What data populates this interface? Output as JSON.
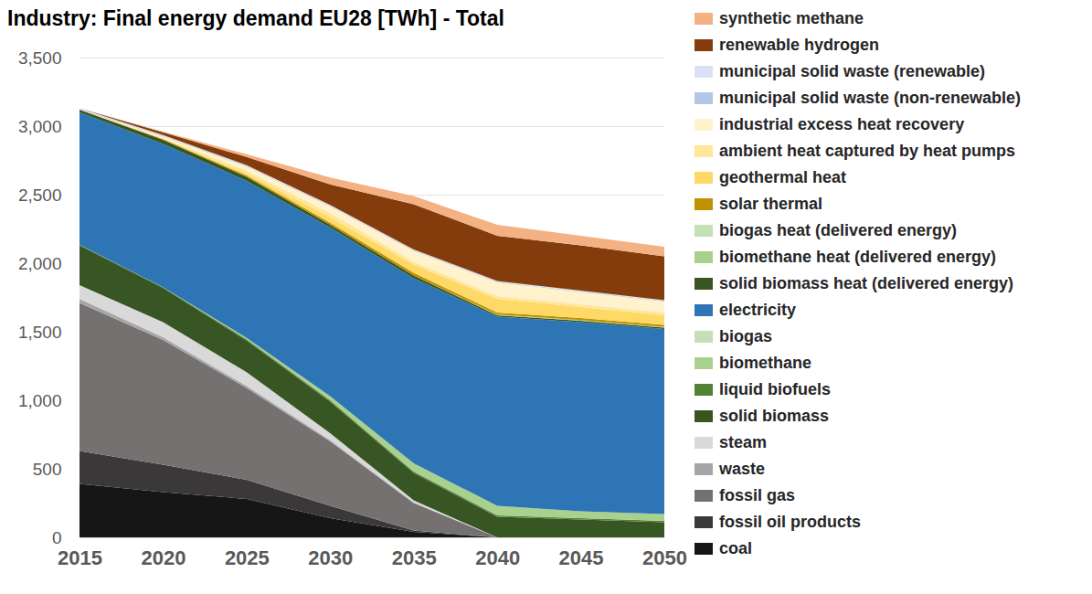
{
  "chart_data": {
    "type": "area",
    "title": "Industry: Final energy demand EU28 [TWh] - Total",
    "stacked": true,
    "grid": true,
    "legend": "right",
    "x": [
      2015,
      2020,
      2025,
      2030,
      2035,
      2040,
      2045,
      2050
    ],
    "xlim": [
      2015,
      2050
    ],
    "xticks": [
      2015,
      2020,
      2025,
      2030,
      2035,
      2040,
      2045,
      2050
    ],
    "ylim": [
      0,
      3500
    ],
    "yticks": [
      0,
      500,
      {
        "value": 1000,
        "label": "1,000"
      },
      {
        "value": 1500,
        "label": "1,500"
      },
      {
        "value": 2000,
        "label": "2,000"
      },
      {
        "value": 2500,
        "label": "2,500"
      },
      {
        "value": 3000,
        "label": "3,000"
      },
      {
        "value": 3500,
        "label": "3,500"
      }
    ],
    "series": [
      {
        "name": "coal",
        "color": "#161616",
        "values": [
          390,
          330,
          280,
          140,
          40,
          0,
          0,
          0
        ]
      },
      {
        "name": "fossil oil products",
        "color": "#3a3838",
        "values": [
          240,
          200,
          140,
          90,
          10,
          0,
          0,
          0
        ]
      },
      {
        "name": "fossil gas",
        "color": "#767171",
        "values": [
          1080,
          910,
          670,
          470,
          200,
          0,
          0,
          0
        ]
      },
      {
        "name": "waste",
        "color": "#a6a6a6",
        "values": [
          30,
          20,
          15,
          10,
          5,
          0,
          0,
          0
        ]
      },
      {
        "name": "steam",
        "color": "#d9d9d9",
        "values": [
          100,
          110,
          100,
          50,
          15,
          0,
          0,
          0
        ]
      },
      {
        "name": "solid biomass",
        "color": "#375623",
        "values": [
          290,
          250,
          230,
          230,
          200,
          150,
          130,
          110
        ]
      },
      {
        "name": "liquid biofuels",
        "color": "#548235",
        "values": [
          5,
          5,
          10,
          10,
          10,
          10,
          10,
          10
        ]
      },
      {
        "name": "biomethane",
        "color": "#a9d18e",
        "values": [
          0,
          0,
          10,
          30,
          60,
          70,
          50,
          50
        ]
      },
      {
        "name": "biogas",
        "color": "#c5e0b4",
        "values": [
          0,
          0,
          0,
          0,
          0,
          0,
          0,
          0
        ]
      },
      {
        "name": "electricity",
        "color": "#2e75b6",
        "values": [
          965,
          1045,
          1145,
          1230,
          1350,
          1380,
          1380,
          1350
        ]
      },
      {
        "name": "solid biomass heat (delivered energy)",
        "color": "#375623",
        "values": [
          20,
          30,
          30,
          20,
          20,
          10,
          10,
          10
        ]
      },
      {
        "name": "biomethane heat (delivered energy)",
        "color": "#a9d18e",
        "values": [
          0,
          0,
          0,
          0,
          0,
          5,
          5,
          5
        ]
      },
      {
        "name": "biogas heat (delivered energy)",
        "color": "#c5e0b4",
        "values": [
          0,
          0,
          0,
          0,
          0,
          0,
          0,
          0
        ]
      },
      {
        "name": "solar thermal",
        "color": "#bf9000",
        "values": [
          0,
          5,
          10,
          15,
          20,
          15,
          15,
          15
        ]
      },
      {
        "name": "geothermal heat",
        "color": "#ffd966",
        "values": [
          0,
          5,
          15,
          40,
          60,
          100,
          80,
          70
        ]
      },
      {
        "name": "ambient heat captured by heat pumps",
        "color": "#ffe699",
        "values": [
          0,
          5,
          20,
          30,
          20,
          20,
          20,
          20
        ]
      },
      {
        "name": "industrial excess heat recovery",
        "color": "#fff2cc",
        "values": [
          0,
          10,
          30,
          50,
          80,
          100,
          90,
          80
        ]
      },
      {
        "name": "municipal solid waste (non-renewable)",
        "color": "#b4c7e7",
        "values": [
          5,
          5,
          5,
          5,
          5,
          5,
          5,
          5
        ]
      },
      {
        "name": "municipal solid waste (renewable)",
        "color": "#dae3f3",
        "values": [
          5,
          5,
          5,
          5,
          5,
          5,
          5,
          5
        ]
      },
      {
        "name": "renewable hydrogen",
        "color": "#843c0c",
        "values": [
          0,
          20,
          60,
          150,
          330,
          330,
          330,
          320
        ]
      },
      {
        "name": "synthetic methane",
        "color": "#f4b183",
        "values": [
          0,
          5,
          20,
          50,
          60,
          80,
          70,
          70
        ]
      }
    ]
  }
}
